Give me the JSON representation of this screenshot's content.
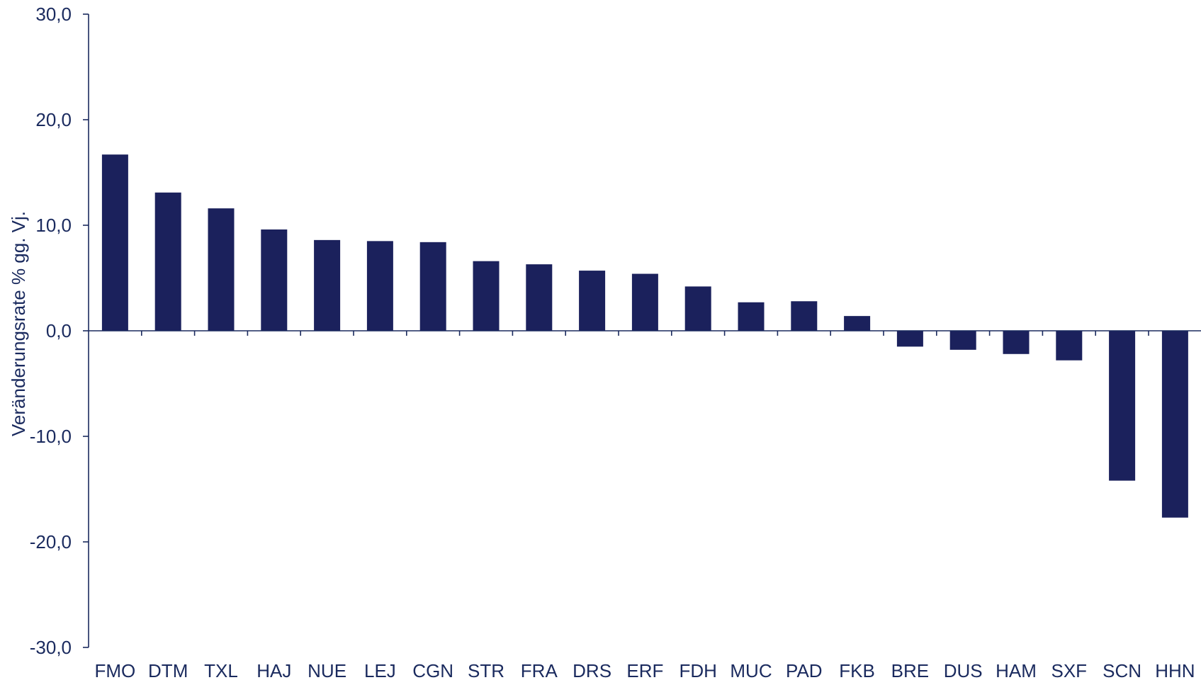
{
  "chart_data": {
    "type": "bar",
    "ylabel": "Veränderungsrate % gg. Vj.",
    "xlabel": "",
    "ylim": [
      -30,
      30
    ],
    "yticks": [
      30,
      20,
      10,
      0,
      -10,
      -20,
      -30
    ],
    "ytick_labels": [
      "30,0",
      "20,0",
      "10,0",
      "0,0",
      "-10,0",
      "-20,0",
      "-30,0"
    ],
    "categories": [
      "FMO",
      "DTM",
      "TXL",
      "HAJ",
      "NUE",
      "LEJ",
      "CGN",
      "STR",
      "FRA",
      "DRS",
      "ERF",
      "FDH",
      "MUC",
      "PAD",
      "FKB",
      "BRE",
      "DUS",
      "HAM",
      "SXF",
      "SCN",
      "HHN"
    ],
    "values": [
      16.7,
      13.1,
      11.6,
      9.6,
      8.6,
      8.5,
      8.4,
      6.6,
      6.3,
      5.7,
      5.4,
      4.2,
      2.7,
      2.8,
      1.4,
      -1.5,
      -1.8,
      -2.2,
      -2.8,
      -14.2,
      -17.7
    ],
    "grid": false,
    "bar_color": "#1b215c",
    "axis_color": "#1a2a5e"
  }
}
